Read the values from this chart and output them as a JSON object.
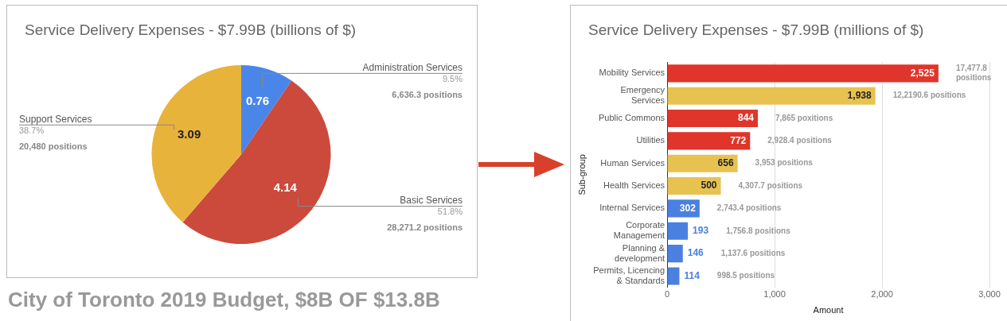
{
  "chart_data": [
    {
      "type": "pie",
      "title": "Service Delivery Expenses - $7.99B (billions of $)",
      "categories": [
        "Administration Services",
        "Basic Services",
        "Support Services"
      ],
      "values": [
        0.76,
        4.14,
        3.09
      ],
      "colors": [
        "#4a86e8",
        "#cc4a3c",
        "#e8b33a"
      ],
      "data_labels": true,
      "annotations": [
        "9.5%",
        "6,636.3 positions",
        "51.8%",
        "28,271.2 positions",
        "38.7%",
        "20,480 positions",
        "City of Toronto 2019 Budget, $8B OF $13.8B"
      ]
    },
    {
      "type": "bar",
      "orientation": "horizontal",
      "title": "Service Delivery Expenses - $7.99B (millions of $)",
      "xlabel": "Amount",
      "ylabel": "Sub-group",
      "categories": [
        "Mobility Services",
        "Emergency Services",
        "Public Commons",
        "Utilities",
        "Human Services",
        "Health Services",
        "Internal Services",
        "Corporate Management",
        "Planning & development",
        "Permits, Licencing & Standards"
      ],
      "values": [
        2525,
        1938,
        844,
        772,
        656,
        500,
        302,
        193,
        146,
        114
      ],
      "colors": [
        "#e0352b",
        "#e8c251",
        "#e0352b",
        "#e0352b",
        "#e8c251",
        "#e8c251",
        "#4a80e0",
        "#4a80e0",
        "#4a80e0",
        "#4a80e0"
      ],
      "value_labels": [
        "2,525",
        "1,938",
        "844",
        "772",
        "656",
        "500",
        "302",
        "193",
        "146",
        "114"
      ],
      "xlim": [
        0,
        3000
      ],
      "xticks": [
        0,
        {
          "value": 1000,
          "label": "1,000"
        },
        {
          "value": 2000,
          "label": "2,000"
        },
        {
          "value": 3000,
          "label": "3,000"
        }
      ],
      "grid": "x",
      "annotations": [
        "17,477.8 positions",
        "12,2190.6 positions",
        "7,865 poxitions",
        "2,928.4 positions",
        "3,953 positions",
        "4,307.7 positions",
        "2,743.4 positions",
        "1,756.8 positions",
        "1,137.6 positions",
        "998.5 positions"
      ]
    }
  ]
}
